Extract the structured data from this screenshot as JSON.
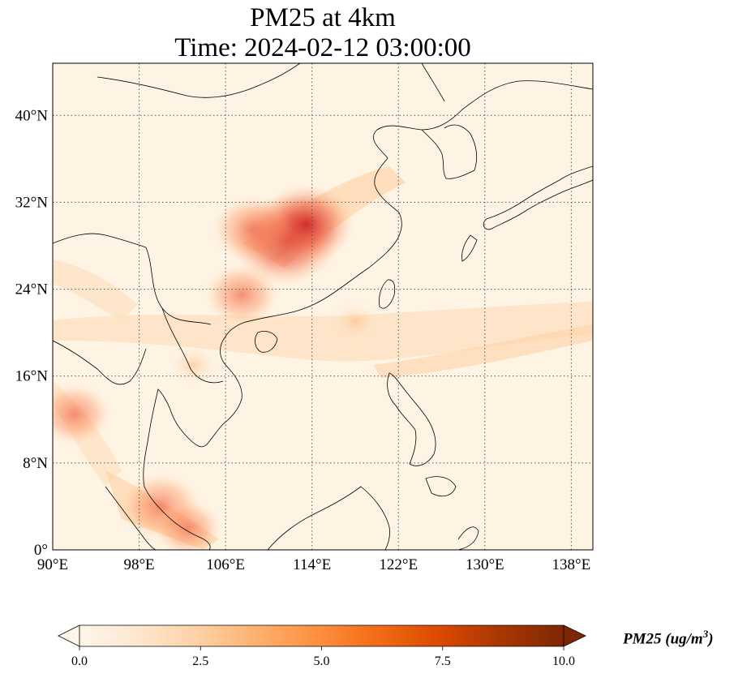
{
  "title": {
    "line1": "PM25 at 4km",
    "line2": "Time: 2024-02-12 03:00:00"
  },
  "map": {
    "lon_range": [
      90,
      140
    ],
    "lat_range": [
      0,
      44.8
    ],
    "lon_ticks": [
      {
        "value": 90,
        "label": "90°E"
      },
      {
        "value": 98,
        "label": "98°E"
      },
      {
        "value": 106,
        "label": "106°E"
      },
      {
        "value": 114,
        "label": "114°E"
      },
      {
        "value": 122,
        "label": "122°E"
      },
      {
        "value": 130,
        "label": "130°E"
      },
      {
        "value": 138,
        "label": "138°E"
      }
    ],
    "lat_ticks": [
      {
        "value": 0,
        "label": "0°"
      },
      {
        "value": 8,
        "label": "8°N"
      },
      {
        "value": 16,
        "label": "16°N"
      },
      {
        "value": 24,
        "label": "24°N"
      },
      {
        "value": 32,
        "label": "32°N"
      },
      {
        "value": 40,
        "label": "40°N"
      }
    ],
    "gridlines": "dotted",
    "field_hotspots": [
      {
        "lon": 111.5,
        "lat": 28.5,
        "value": 6.5
      },
      {
        "lon": 113.5,
        "lat": 30.0,
        "value": 5.5
      },
      {
        "lon": 108.5,
        "lat": 29.5,
        "value": 4.5
      },
      {
        "lon": 107.5,
        "lat": 23.5,
        "value": 4.0
      },
      {
        "lon": 100.0,
        "lat": 4.0,
        "value": 4.5
      },
      {
        "lon": 102.5,
        "lat": 2.0,
        "value": 3.5
      },
      {
        "lon": 92.0,
        "lat": 12.5,
        "value": 4.0
      },
      {
        "lon": 103.0,
        "lat": 17.0,
        "value": 2.0
      },
      {
        "lon": 118.0,
        "lat": 21.0,
        "value": 2.0
      }
    ]
  },
  "colorbar": {
    "label_main": "PM25 (ug/m",
    "label_sup": "3",
    "label_close": ")",
    "min": 0,
    "max": 10,
    "ticks": [
      "0.0",
      "2.5",
      "5.0",
      "7.5",
      "10.0"
    ],
    "colormap": [
      "#fff5eb",
      "#fee6ce",
      "#fdd0a2",
      "#fdae6b",
      "#fd8d3c",
      "#f16913",
      "#d94801",
      "#a63603",
      "#7f2704"
    ],
    "extend": "both"
  }
}
